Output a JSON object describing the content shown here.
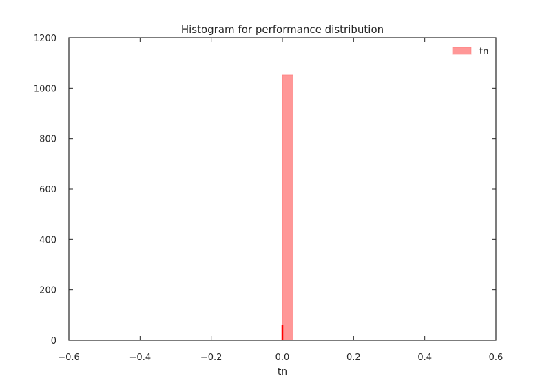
{
  "chart_data": {
    "type": "bar",
    "title": "Histogram for performance distribution",
    "xlabel": "tn",
    "ylabel": "",
    "xlim": [
      -0.6,
      0.6
    ],
    "ylim": [
      0,
      1200
    ],
    "xticks": [
      -0.6,
      -0.4,
      -0.2,
      0.0,
      0.2,
      0.4,
      0.6
    ],
    "xtick_labels": [
      "−0.6",
      "−0.4",
      "−0.2",
      "0.0",
      "0.2",
      "0.4",
      "0.6"
    ],
    "yticks": [
      0,
      200,
      400,
      600,
      800,
      1000,
      1200
    ],
    "ytick_labels": [
      "0",
      "200",
      "400",
      "600",
      "800",
      "1000",
      "1200"
    ],
    "grid": false,
    "legend_position": "top-right",
    "series": [
      {
        "name": "tn",
        "color": "#ff6b6b",
        "bins": [
          {
            "x0": 0.0,
            "x1": 0.03,
            "count": 1053
          }
        ]
      }
    ],
    "annotations": [
      {
        "type": "vline",
        "x": 0.0,
        "y0": 0,
        "y1": 60,
        "color": "#ff0000"
      }
    ]
  }
}
